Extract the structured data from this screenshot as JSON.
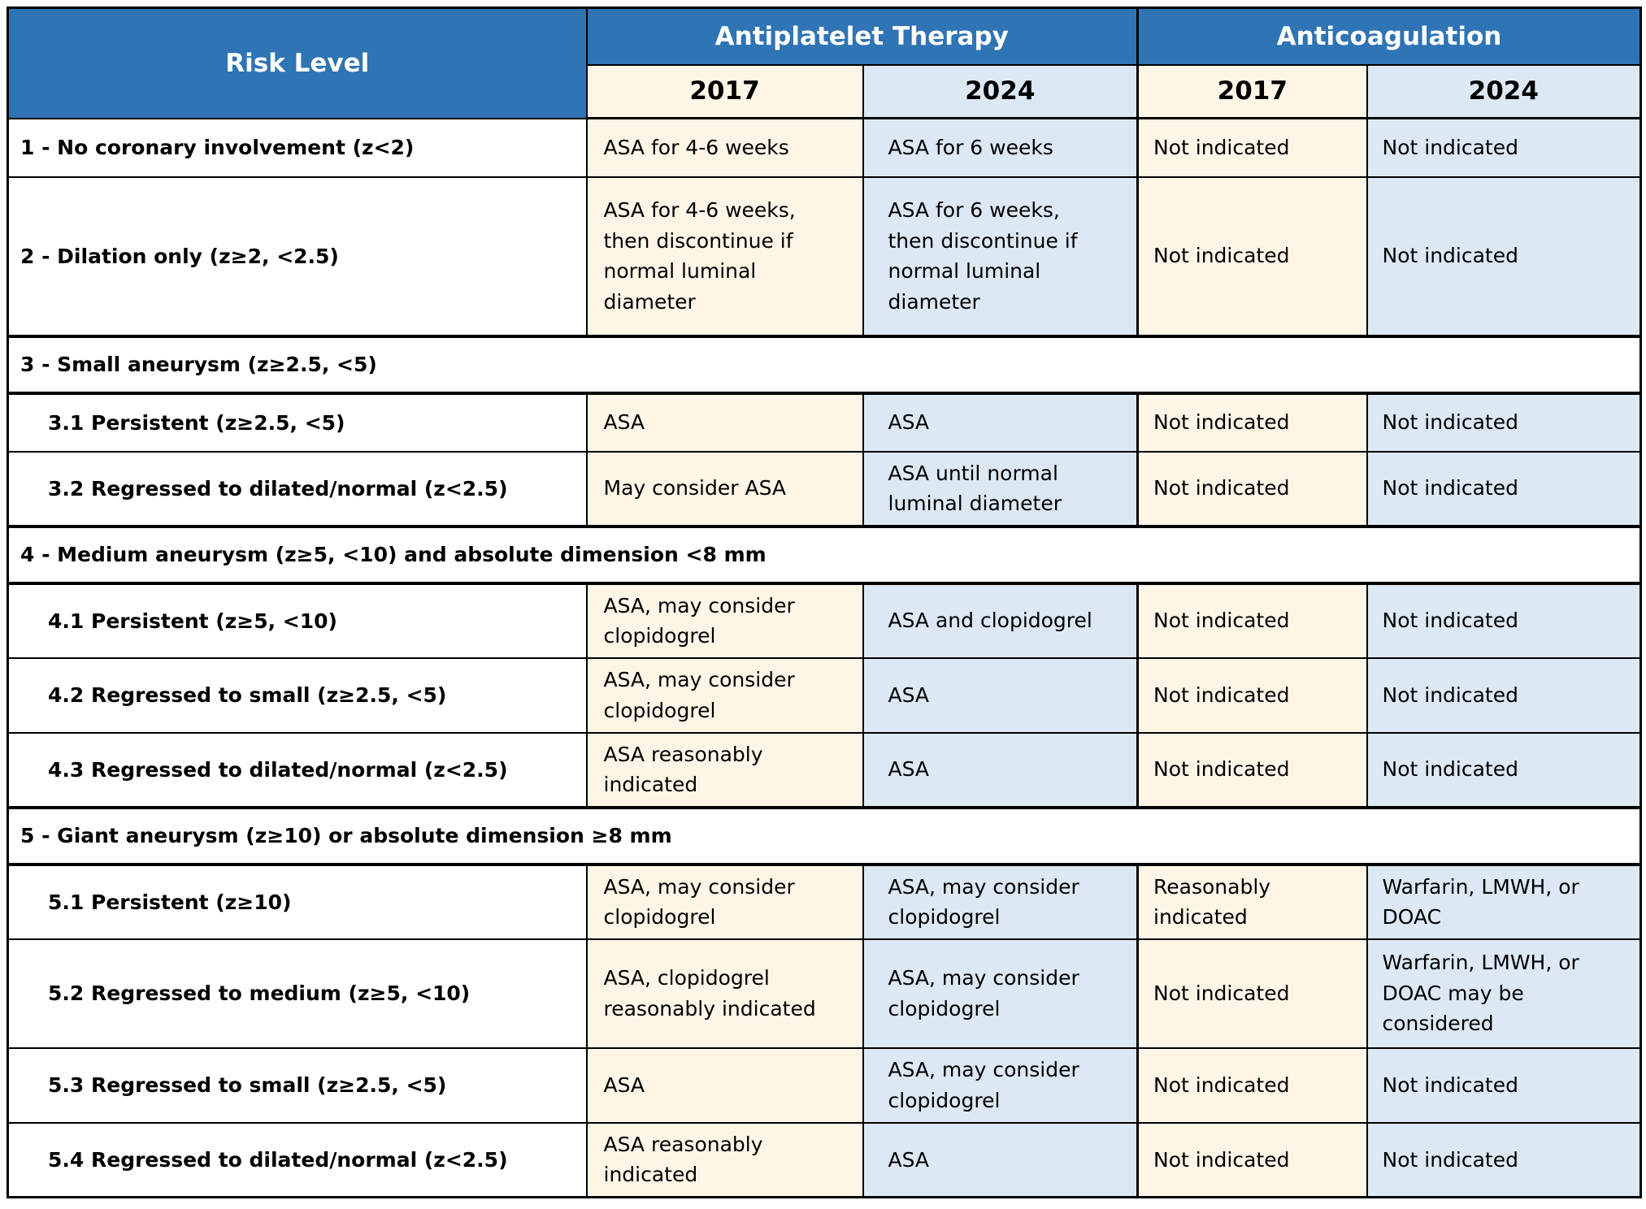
{
  "colors": {
    "header_blue": "#2F74B5",
    "header_text": "#FFFFFF",
    "col_2017_bg": "#FDF5E6",
    "col_2024_bg": "#DCE8F4",
    "row_bg": "#FFFFFF",
    "body_text": "#000000",
    "border_color": "#000000"
  },
  "table": {
    "header": {
      "risk_level": "Risk Level",
      "antiplatelet_therapy": "Antiplatelet Therapy",
      "anticoagulation": "Anticoagulation",
      "antiplatelet_2017": "2017",
      "antiplatelet_2024": "2024",
      "anticoagulation_2017": "2017",
      "anticoagulation_2024": "2024"
    },
    "rows": [
      {
        "risk_level": "1 - No coronary involvement (z<2)",
        "antiplatelet_2017": "ASA for 4-6 weeks",
        "antiplatelet_2024": "ASA for 6 weeks",
        "anticoagulation_2017": "Not indicated",
        "anticoagulation_2024": "Not indicated"
      },
      {
        "risk_level": "2 - Dilation only (z≥2, <2.5)",
        "antiplatelet_2017": "ASA for 4-6 weeks, then discontinue if normal luminal diameter",
        "antiplatelet_2024": "ASA for 6 weeks, then discontinue if normal luminal diameter",
        "anticoagulation_2017": "Not indicated",
        "anticoagulation_2024": "Not indicated"
      },
      {
        "risk_level": "3 - Small aneurysm (z≥2.5, <5)"
      },
      {
        "risk_level": "3.1 Persistent (z≥2.5, <5)",
        "antiplatelet_2017": "ASA",
        "antiplatelet_2024": "ASA",
        "anticoagulation_2017": "Not indicated",
        "anticoagulation_2024": "Not indicated"
      },
      {
        "risk_level": "3.2 Regressed to dilated/normal (z<2.5)",
        "antiplatelet_2017": "May consider ASA",
        "antiplatelet_2024": "ASA until normal luminal diameter",
        "anticoagulation_2017": "Not indicated",
        "anticoagulation_2024": "Not indicated"
      },
      {
        "risk_level": "4 - Medium aneurysm (z≥5, <10) and absolute dimension <8 mm"
      },
      {
        "risk_level": "4.1 Persistent (z≥5, <10)",
        "antiplatelet_2017": "ASA, may consider clopidogrel",
        "antiplatelet_2024": "ASA and clopidogrel",
        "anticoagulation_2017": "Not indicated",
        "anticoagulation_2024": "Not indicated"
      },
      {
        "risk_level": "4.2 Regressed to small (z≥2.5, <5)",
        "antiplatelet_2017": "ASA, may consider clopidogrel",
        "antiplatelet_2024": "ASA",
        "anticoagulation_2017": "Not indicated",
        "anticoagulation_2024": "Not indicated"
      },
      {
        "risk_level": "4.3 Regressed to dilated/normal (z<2.5)",
        "antiplatelet_2017": "ASA reasonably indicated",
        "antiplatelet_2024": "ASA",
        "anticoagulation_2017": "Not indicated",
        "anticoagulation_2024": "Not indicated"
      },
      {
        "risk_level": "5 - Giant aneurysm (z≥10) or absolute dimension ≥8 mm"
      },
      {
        "risk_level": "5.1 Persistent (z≥10)",
        "antiplatelet_2017": "ASA, may consider clopidogrel",
        "antiplatelet_2024": "ASA, may consider clopidogrel",
        "anticoagulation_2017": "Reasonably indicated",
        "anticoagulation_2024": "Warfarin, LMWH, or DOAC"
      },
      {
        "risk_level": "5.2 Regressed to medium (z≥5, <10)",
        "antiplatelet_2017": "ASA, clopidogrel reasonably indicated",
        "antiplatelet_2024": "ASA, may consider clopidogrel",
        "anticoagulation_2017": "Not indicated",
        "anticoagulation_2024": "Warfarin, LMWH, or DOAC may be considered"
      },
      {
        "risk_level": "5.3 Regressed to small (z≥2.5, <5)",
        "antiplatelet_2017": "ASA",
        "antiplatelet_2024": "ASA, may consider clopidogrel",
        "anticoagulation_2017": "Not indicated",
        "anticoagulation_2024": "Not indicated"
      },
      {
        "risk_level": "5.4 Regressed to dilated/normal (z<2.5)",
        "antiplatelet_2017": "ASA reasonably indicated",
        "antiplatelet_2024": "ASA",
        "anticoagulation_2017": "Not indicated",
        "anticoagulation_2024": "Not indicated"
      }
    ]
  }
}
